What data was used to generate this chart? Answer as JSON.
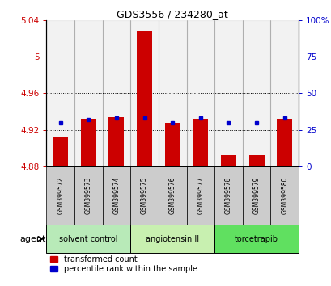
{
  "title": "GDS3556 / 234280_at",
  "samples": [
    "GSM399572",
    "GSM399573",
    "GSM399574",
    "GSM399575",
    "GSM399576",
    "GSM399577",
    "GSM399578",
    "GSM399579",
    "GSM399580"
  ],
  "transformed_counts": [
    4.912,
    4.932,
    4.934,
    5.028,
    4.928,
    4.932,
    4.892,
    4.892,
    4.932
  ],
  "percentile_ranks": [
    30,
    32,
    33,
    33,
    30,
    33,
    30,
    30,
    33
  ],
  "bar_bottom": 4.88,
  "ylim_left": [
    4.88,
    5.04
  ],
  "ylim_right": [
    0,
    100
  ],
  "yticks_left": [
    4.88,
    4.92,
    4.96,
    5.0,
    5.04
  ],
  "yticks_right": [
    0,
    25,
    50,
    75,
    100
  ],
  "ytick_labels_left": [
    "4.88",
    "4.92",
    "4.96",
    "5",
    "5.04"
  ],
  "ytick_labels_right": [
    "0",
    "25",
    "50",
    "75",
    "100%"
  ],
  "grid_lines": [
    4.92,
    4.96,
    5.0
  ],
  "groups": [
    {
      "label": "solvent control",
      "indices": [
        0,
        1,
        2
      ],
      "color": "#b8eab8"
    },
    {
      "label": "angiotensin II",
      "indices": [
        3,
        4,
        5
      ],
      "color": "#c8f0b0"
    },
    {
      "label": "torcetrapib",
      "indices": [
        6,
        7,
        8
      ],
      "color": "#60e060"
    }
  ],
  "bar_color": "#cc0000",
  "dot_color": "#0000cc",
  "bar_width": 0.55,
  "sample_bg_color": "#cccccc",
  "left_tick_color": "#cc0000",
  "right_tick_color": "#0000cc",
  "agent_label": "agent",
  "legend_items": [
    {
      "color": "#cc0000",
      "label": "transformed count"
    },
    {
      "color": "#0000cc",
      "label": "percentile rank within the sample"
    }
  ],
  "title_fontsize": 9,
  "tick_fontsize": 7.5,
  "sample_fontsize": 5.5,
  "group_fontsize": 7,
  "legend_fontsize": 7
}
